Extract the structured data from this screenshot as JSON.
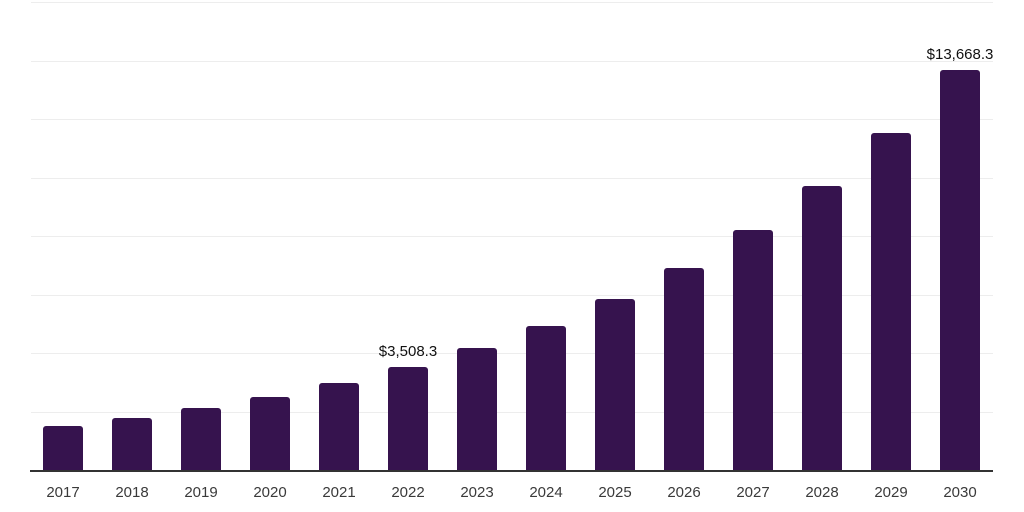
{
  "chart_data": {
    "type": "bar",
    "title": "",
    "xlabel": "",
    "ylabel": "",
    "categories": [
      "2017",
      "2018",
      "2019",
      "2020",
      "2021",
      "2022",
      "2023",
      "2024",
      "2025",
      "2026",
      "2027",
      "2028",
      "2029",
      "2030"
    ],
    "values": [
      1500,
      1790,
      2120,
      2510,
      2980,
      3508.3,
      4160,
      4930,
      5840,
      6920,
      8190,
      9710,
      11510,
      13668.3
    ],
    "value_labels": [
      {
        "category": "2022",
        "text": "$3,508.3"
      },
      {
        "category": "2030",
        "text": "$13,668.3"
      }
    ],
    "ylim": [
      0,
      16000
    ],
    "grid_step": 2000,
    "grid": true,
    "legend": false,
    "y_axis_ticks_visible": false,
    "colors": {
      "bar": "#36134e",
      "grid": "#ededed",
      "axis": "#333333",
      "tick_label": "#3a3a3a",
      "value_label": "#111111",
      "background": "#ffffff"
    }
  }
}
